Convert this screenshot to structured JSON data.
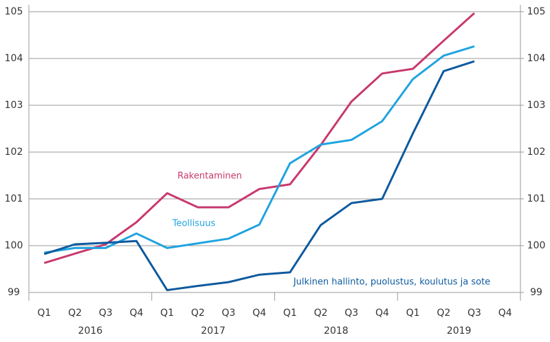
{
  "chart_data": {
    "type": "line",
    "categories": [
      "Q1",
      "Q2",
      "Q3",
      "Q4",
      "Q1",
      "Q2",
      "Q3",
      "Q4",
      "Q1",
      "Q2",
      "Q3",
      "Q4",
      "Q1",
      "Q2",
      "Q3",
      "Q4"
    ],
    "years": [
      "2016",
      "2017",
      "2018",
      "2019"
    ],
    "series": [
      {
        "name": "Rakentaminen",
        "color": "#c8386e",
        "values": [
          99.63,
          99.83,
          100.03,
          100.5,
          101.12,
          100.82,
          100.82,
          101.21,
          101.31,
          102.15,
          103.08,
          103.68,
          103.78,
          104.38,
          104.97,
          null
        ]
      },
      {
        "name": "Teollisuus",
        "color": "#1fa3e0",
        "values": [
          99.85,
          99.95,
          99.95,
          100.26,
          99.95,
          100.05,
          100.15,
          100.45,
          101.76,
          102.16,
          102.26,
          102.66,
          103.56,
          104.06,
          104.26,
          null
        ]
      },
      {
        "name": "Julkinen hallinto, puolustus, koulutus ja sote",
        "color": "#0d5a9e",
        "values": [
          99.82,
          100.03,
          100.06,
          100.1,
          99.05,
          99.14,
          99.22,
          99.38,
          99.43,
          100.44,
          100.91,
          101.0,
          102.4,
          103.73,
          103.94,
          null
        ]
      }
    ],
    "ylim": [
      99,
      105
    ],
    "yticks": [
      99,
      100,
      101,
      102,
      103,
      104,
      105
    ],
    "y2lim": [
      99,
      105
    ],
    "y2ticks": [
      99,
      100,
      101,
      102,
      103,
      104,
      105
    ],
    "grid": true
  }
}
